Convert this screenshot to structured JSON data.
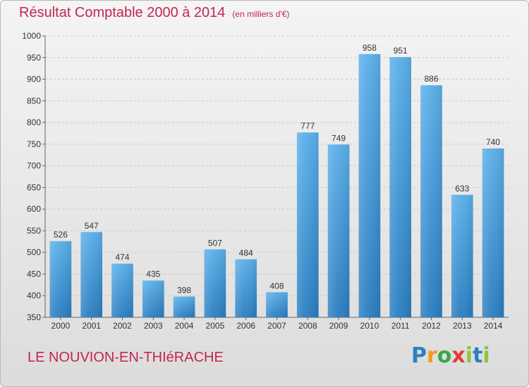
{
  "title": "Résultat Comptable 2000 à 2014",
  "subtitle": "(en milliers d'€)",
  "commune": "LE NOUVION-EN-THIéRACHE",
  "logo": {
    "p": "P",
    "r": "r",
    "o": "o",
    "x": "x",
    "i": "i",
    "t": "t",
    "i2": "i"
  },
  "colors": {
    "title": "#c4264f",
    "bar_top": "#5aafe9",
    "bar_bottom": "#2a7dc0"
  },
  "chart_data": {
    "type": "bar",
    "categories": [
      "2000",
      "2001",
      "2002",
      "2003",
      "2004",
      "2005",
      "2006",
      "2007",
      "2008",
      "2009",
      "2010",
      "2011",
      "2012",
      "2013",
      "2014"
    ],
    "values": [
      526,
      547,
      474,
      435,
      398,
      507,
      484,
      408,
      777,
      749,
      958,
      951,
      886,
      633,
      740
    ],
    "ylim": [
      350,
      1000
    ],
    "yticks": [
      350,
      400,
      450,
      500,
      550,
      600,
      650,
      700,
      750,
      800,
      850,
      900,
      950,
      1000
    ],
    "grid": true
  }
}
